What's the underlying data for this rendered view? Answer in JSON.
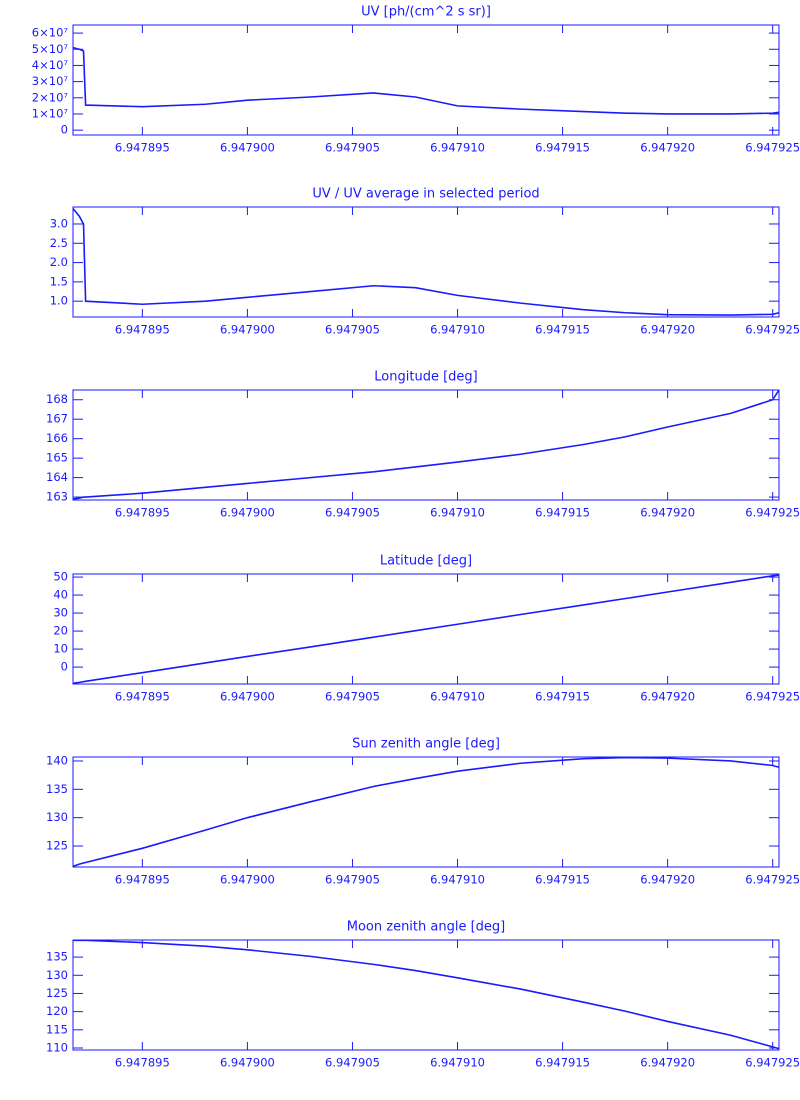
{
  "chart_data": [
    {
      "type": "line",
      "title": "UV [ph/(cm^2 s sr)]",
      "color": "#1a1aff",
      "x": [
        6.9478917,
        6.947892,
        6.9478922,
        6.9478923,
        6.947895,
        6.947898,
        6.9479,
        6.947903,
        6.947906,
        6.947908,
        6.94791,
        6.947913,
        6.947916,
        6.947918,
        6.94792,
        6.947923,
        6.947925,
        6.9479253
      ],
      "values": [
        51000000,
        50000000,
        49000000,
        15500000,
        14500000,
        16000000,
        18500000,
        20500000,
        23000000,
        20500000,
        15000000,
        13000000,
        11500000,
        10500000,
        10000000,
        10000000,
        10500000,
        11000000
      ],
      "xlim": [
        6.9478917,
        6.9479253
      ],
      "xticks": [
        6.947895,
        {
          "value": 6.9479,
          "label": "6.947900"
        },
        6.947905,
        {
          "value": 6.94791,
          "label": "6.947910"
        },
        6.947915,
        {
          "value": 6.94792,
          "label": "6.947920"
        },
        6.947925
      ],
      "ylim": [
        -3000000,
        65000000
      ],
      "yticks": [
        0,
        {
          "value": 10000000,
          "label": "1×10⁷"
        },
        {
          "value": 20000000,
          "label": "2×10⁷"
        },
        {
          "value": 30000000,
          "label": "3×10⁷"
        },
        {
          "value": 40000000,
          "label": "4×10⁷"
        },
        {
          "value": 50000000,
          "label": "5×10⁷"
        },
        {
          "value": 60000000,
          "label": "6×10⁷"
        }
      ]
    },
    {
      "type": "line",
      "title": "UV / UV average in selected period",
      "color": "#1a1aff",
      "x": [
        6.9478917,
        6.947892,
        6.9478922,
        6.9478923,
        6.947895,
        6.947898,
        6.9479,
        6.947903,
        6.947906,
        6.947908,
        6.94791,
        6.947913,
        6.947916,
        6.947918,
        6.94792,
        6.947923,
        6.947925,
        6.9479253
      ],
      "values": [
        3.4,
        3.2,
        3.0,
        1.0,
        0.92,
        1.0,
        1.1,
        1.25,
        1.4,
        1.35,
        1.15,
        0.95,
        0.78,
        0.7,
        0.65,
        0.64,
        0.66,
        0.7
      ],
      "xlim": [
        6.9478917,
        6.9479253
      ],
      "xticks": [
        6.947895,
        {
          "value": 6.9479,
          "label": "6.947900"
        },
        6.947905,
        {
          "value": 6.94791,
          "label": "6.947910"
        },
        6.947915,
        {
          "value": 6.94792,
          "label": "6.947920"
        },
        6.947925
      ],
      "ylim": [
        0.59,
        3.44
      ],
      "yticks": [
        {
          "value": 1,
          "label": "1.0"
        },
        1.5,
        {
          "value": 2,
          "label": "2.0"
        },
        2.5,
        {
          "value": 3,
          "label": "3.0"
        }
      ]
    },
    {
      "type": "line",
      "title": "Longitude [deg]",
      "color": "#1a1aff",
      "x": [
        6.9478917,
        6.947892,
        6.9478922,
        6.9478923,
        6.947895,
        6.947898,
        6.9479,
        6.947903,
        6.947906,
        6.947908,
        6.94791,
        6.947913,
        6.947916,
        6.947918,
        6.94792,
        6.947923,
        6.947925,
        6.9479253
      ],
      "values": [
        162.9,
        162.95,
        163.0,
        163.0,
        163.2,
        163.5,
        163.7,
        164.0,
        164.3,
        164.55,
        164.8,
        165.2,
        165.7,
        166.1,
        166.6,
        167.3,
        168.0,
        168.5
      ],
      "xlim": [
        6.9478917,
        6.9479253
      ],
      "xticks": [
        6.947895,
        {
          "value": 6.9479,
          "label": "6.947900"
        },
        6.947905,
        {
          "value": 6.94791,
          "label": "6.947910"
        },
        6.947915,
        {
          "value": 6.94792,
          "label": "6.947920"
        },
        6.947925
      ],
      "ylim": [
        162.85,
        168.5
      ],
      "yticks": [
        163,
        164,
        165,
        166,
        167,
        168
      ]
    },
    {
      "type": "line",
      "title": "Latitude [deg]",
      "color": "#1a1aff",
      "x": [
        6.9478917,
        6.947892,
        6.9478922,
        6.9478923,
        6.947895,
        6.947898,
        6.9479,
        6.947903,
        6.947906,
        6.947908,
        6.94791,
        6.947913,
        6.947916,
        6.947918,
        6.94792,
        6.947923,
        6.947925,
        6.9479253
      ],
      "values": [
        -9,
        -8.5,
        -8.1,
        -7.9,
        -3.1,
        2.3,
        5.9,
        11.2,
        16.6,
        20.2,
        23.8,
        29.2,
        34.5,
        38.1,
        41.7,
        47.1,
        50.7,
        51.2
      ],
      "xlim": [
        6.9478917,
        6.9479253
      ],
      "xticks": [
        6.947895,
        {
          "value": 6.9479,
          "label": "6.947900"
        },
        6.947905,
        {
          "value": 6.94791,
          "label": "6.947910"
        },
        6.947915,
        {
          "value": 6.94792,
          "label": "6.947920"
        },
        6.947925
      ],
      "ylim": [
        -9.4,
        51.7
      ],
      "yticks": [
        0,
        10,
        20,
        30,
        40,
        50
      ]
    },
    {
      "type": "line",
      "title": "Sun zenith angle [deg]",
      "color": "#1a1aff",
      "x": [
        6.9478917,
        6.947892,
        6.9478922,
        6.9478923,
        6.947895,
        6.947898,
        6.9479,
        6.947903,
        6.947906,
        6.947908,
        6.94791,
        6.947913,
        6.947916,
        6.947918,
        6.94792,
        6.947923,
        6.947925,
        6.9479253
      ],
      "values": [
        121.4,
        121.8,
        122.0,
        122.1,
        124.6,
        127.8,
        130.0,
        132.8,
        135.5,
        136.9,
        138.2,
        139.6,
        140.4,
        140.6,
        140.5,
        140.0,
        139.2,
        138.9
      ],
      "xlim": [
        6.9478917,
        6.9479253
      ],
      "xticks": [
        6.947895,
        {
          "value": 6.9479,
          "label": "6.947900"
        },
        6.947905,
        {
          "value": 6.94791,
          "label": "6.947910"
        },
        6.947915,
        {
          "value": 6.94792,
          "label": "6.947920"
        },
        6.947925
      ],
      "ylim": [
        121.3,
        140.7
      ],
      "yticks": [
        125,
        130,
        135,
        140
      ]
    },
    {
      "type": "line",
      "title": "Moon zenith angle [deg]",
      "color": "#1a1aff",
      "x": [
        6.9478917,
        6.947892,
        6.9478922,
        6.9478923,
        6.947895,
        6.947898,
        6.9479,
        6.947903,
        6.947906,
        6.947908,
        6.94791,
        6.947913,
        6.947916,
        6.947918,
        6.94792,
        6.947923,
        6.947925,
        6.9479253
      ],
      "values": [
        139.6,
        139.6,
        139.6,
        139.6,
        139.0,
        138.0,
        137.0,
        135.2,
        133.0,
        131.3,
        129.3,
        126.2,
        122.6,
        120.1,
        117.3,
        113.5,
        110.3,
        109.8
      ],
      "xlim": [
        6.9478917,
        6.9479253
      ],
      "xticks": [
        6.947895,
        {
          "value": 6.9479,
          "label": "6.947900"
        },
        6.947905,
        {
          "value": 6.94791,
          "label": "6.947910"
        },
        6.947915,
        {
          "value": 6.94792,
          "label": "6.947920"
        },
        6.947925
      ],
      "ylim": [
        109.45,
        139.7
      ],
      "yticks": [
        110,
        115,
        120,
        125,
        130,
        135
      ]
    }
  ]
}
